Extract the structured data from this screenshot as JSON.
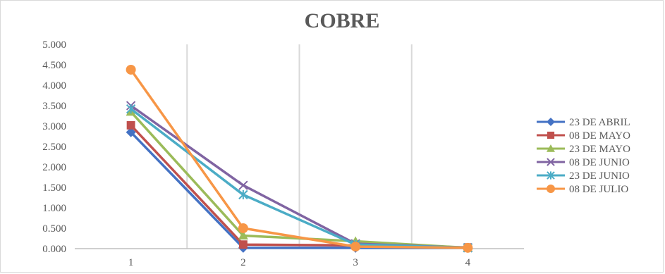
{
  "chart_data": {
    "type": "line",
    "title": "COBRE",
    "xlabel": "",
    "ylabel": "",
    "categories": [
      "1",
      "2",
      "3",
      "4"
    ],
    "y_tick_labels": [
      "0.000",
      "0.500",
      "1.000",
      "1.500",
      "2.000",
      "2.500",
      "3.000",
      "3.500",
      "4.000",
      "4.500",
      "5.000"
    ],
    "ylim": [
      0,
      5
    ],
    "grid": "vertical",
    "legend_position": "right",
    "series": [
      {
        "name": "23 DE ABRIL",
        "color": "#4472c4",
        "marker": "diamond",
        "values": [
          2.85,
          0.02,
          0.02,
          0.02
        ]
      },
      {
        "name": "08 DE MAYO",
        "color": "#c0504d",
        "marker": "square",
        "values": [
          3.02,
          0.1,
          0.08,
          0.03
        ]
      },
      {
        "name": "23 DE MAYO",
        "color": "#9bbb59",
        "marker": "triangle",
        "values": [
          3.35,
          0.32,
          0.18,
          0.02
        ]
      },
      {
        "name": "08 DE JUNIO",
        "color": "#8064a2",
        "marker": "x",
        "values": [
          3.5,
          1.55,
          0.12,
          0.02
        ]
      },
      {
        "name": "23 DE JUNIO",
        "color": "#4bacc6",
        "marker": "star",
        "values": [
          3.42,
          1.32,
          0.1,
          0.02
        ]
      },
      {
        "name": "08 DE JULIO",
        "color": "#f79646",
        "marker": "circle",
        "values": [
          4.38,
          0.5,
          0.05,
          0.02
        ]
      }
    ]
  }
}
